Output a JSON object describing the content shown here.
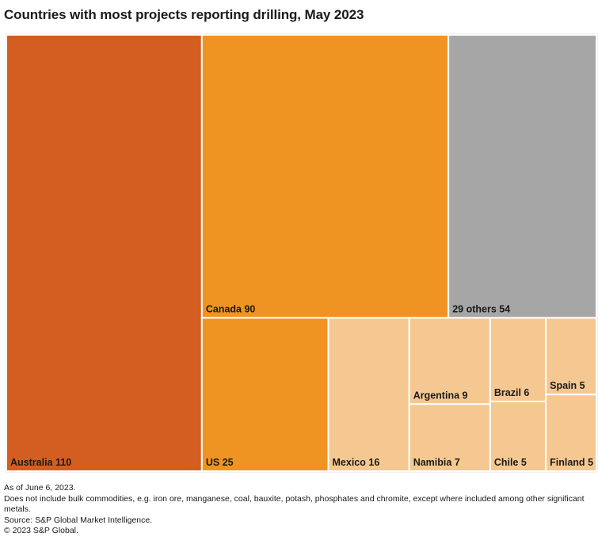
{
  "chart_data": {
    "type": "treemap",
    "title": "Countries with most projects reporting drilling, May 2023",
    "categories": [
      "Australia",
      "Canada",
      "29 others",
      "US",
      "Mexico",
      "Argentina",
      "Namibia",
      "Brazil",
      "Chile",
      "Spain",
      "Finland"
    ],
    "values": [
      110,
      90,
      54,
      25,
      16,
      9,
      7,
      6,
      5,
      5,
      5
    ],
    "colors": [
      "#d45d22",
      "#ef9422",
      "#a6a6a6",
      "#ef9422",
      "#f5c891",
      "#f5c891",
      "#f5c891",
      "#f5c891",
      "#f5c891",
      "#f5c891",
      "#f5c891"
    ],
    "notes": [
      "As of June 6, 2023.",
      "Does not include bulk commodities, e.g. iron ore, manganese, coal, bauxite, potash, phosphates and chromite, except where included among other significant metals.",
      "Source: S&P Global Market Intelligence.",
      "© 2023 S&P Global."
    ]
  }
}
